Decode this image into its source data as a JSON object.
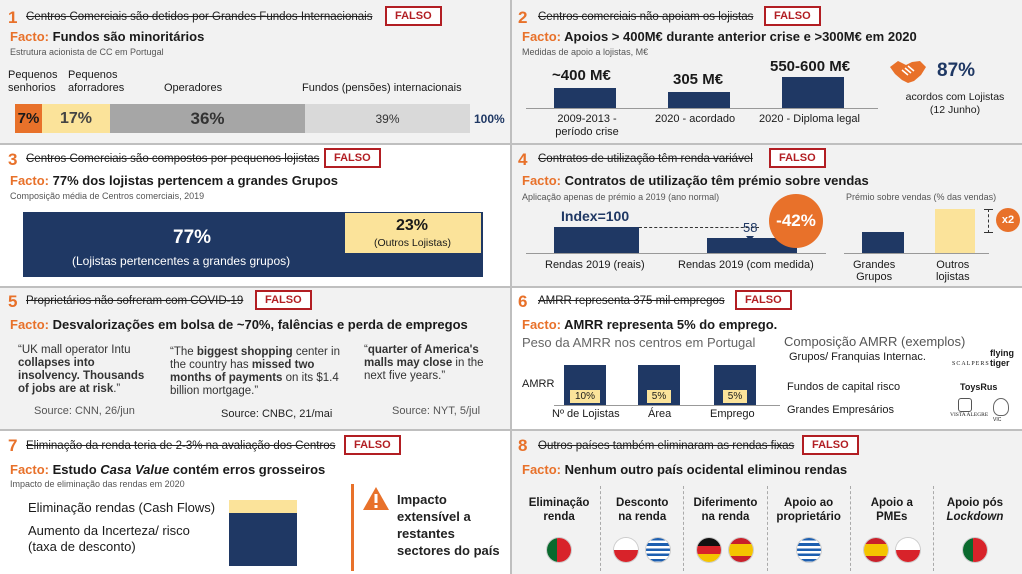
{
  "p1": {
    "num": "1",
    "myth": "Centros Comerciais são detidos por Grandes Fundos Internacionais",
    "falso": "FALSO",
    "fact_label": "Facto:",
    "fact_text": "Fundos são minoritários",
    "sub": "Estrutura acionista de CC em Portugal",
    "seg_labels": [
      "Pequenos senhorios",
      "Pequenos aforradores",
      "Operadores",
      "Fundos (pensões) internacionais"
    ],
    "seg_values": [
      "7%",
      "17%",
      "36%",
      "39%"
    ],
    "seg_colors": [
      "#e8712a",
      "#fbe39a",
      "#a6a6a6",
      "#d9d9d9"
    ],
    "total": "100%"
  },
  "p2": {
    "num": "2",
    "myth": "Centros comerciais não apoiam os lojistas",
    "falso": "FALSO",
    "fact_label": "Facto:",
    "fact_text": "Apoios > 400M€ durante anterior crise e >300M€ em 2020",
    "sub": "Medidas de apoio a lojistas, M€",
    "bars": [
      {
        "value": "~400 M€",
        "label": "2009-2013 -\nperíodo crise"
      },
      {
        "value": "305 M€",
        "label": "2020 - acordado"
      },
      {
        "value": "550-600 M€",
        "label": "2020 - Diploma legal"
      }
    ],
    "pct": "87%",
    "pct_label": "acordos com Lojistas\n(12 Junho)",
    "icon": "handshake-icon"
  },
  "p3": {
    "num": "3",
    "myth": "Centros Comerciais são compostos por pequenos lojistas",
    "falso": "FALSO",
    "fact_label": "Facto:",
    "fact_text": "77% dos lojistas pertencem a grandes Grupos",
    "sub": "Composição média de Centros comerciais, 2019",
    "big_value": "77%",
    "big_label": "(Lojistas pertencentes a grandes grupos)",
    "small_value": "23%",
    "small_label": "(Outros Lojistas)"
  },
  "p4": {
    "num": "4",
    "myth": "Contratos de utilização têm renda variável",
    "falso": "FALSO",
    "fact_label": "Facto:",
    "fact_text": "Contratos de utilização têm prémio sobre vendas",
    "sub": "Aplicação apenas de prémio a 2019 (ano normal)",
    "index_label": "Index=100",
    "index2": "58",
    "badge": "-42%",
    "bar1_label": "Rendas 2019 (reais)",
    "bar2_label": "Rendas 2019 (com medida)",
    "sub2": "Prémio sobre vendas (% das vendas)",
    "bar3_label": "Grandes\nGrupos",
    "bar4_label": "Outros\nlojistas",
    "mult": "x2"
  },
  "p5": {
    "num": "5",
    "myth": "Proprietários não sofreram com COVID-19",
    "falso": "FALSO",
    "fact_label": "Facto:",
    "fact_text": "Desvalorizações em bolsa de ~70%, falências e perda de empregos",
    "q1_a": "“UK mall operator Intu ",
    "q1_b": "collapses into insolvency. Thousands of jobs are at risk",
    "q1_c": ".”",
    "q1_src": "Source: CNN, 26/jun",
    "q2_a": "“The ",
    "q2_b": "biggest shopping",
    "q2_c": " center in the country has ",
    "q2_d": "missed two months of payments",
    "q2_e": " on its $1.4 billion mortgage.”",
    "q2_src": "Source: CNBC, 21/mai",
    "q3_a": "“",
    "q3_b": "quarter of America's malls may close",
    "q3_c": " in the next five years.”",
    "q3_src": "Source: NYT, 5/jul"
  },
  "p6": {
    "num": "6",
    "myth": "AMRR representa 375 mil empregos",
    "falso": "FALSO",
    "fact_label": "Facto:",
    "fact_text": "AMRR representa 5% do emprego.",
    "sub": "Peso da AMRR nos centros em Portugal",
    "amrr": "AMRR",
    "bars": [
      {
        "value": "10%",
        "label": "Nº de Lojistas"
      },
      {
        "value": "5%",
        "label": "Área"
      },
      {
        "value": "5%",
        "label": "Emprego"
      }
    ],
    "comp_title": "Composição AMRR (exemplos)",
    "comp_items": [
      "Grupos/ Franquias Internac.",
      "Fundos de capital risco",
      "Grandes Empresários"
    ],
    "logos": [
      "SCALPERS",
      "flying tiger",
      "ToysRus",
      "VISTA ALEGRE",
      "VIC"
    ]
  },
  "p7": {
    "num": "7",
    "myth": "Eliminação da renda teria de 2-3% na avaliação dos Centros",
    "falso": "FALSO",
    "fact_label": "Facto:",
    "fact_pre": "Estudo ",
    "fact_italic": "Casa Value",
    "fact_post": " contém erros grosseiros",
    "sub": "Impacto de eliminação das rendas em 2020",
    "row1": "Eliminação rendas (Cash Flows)",
    "row2": "Aumento da Incerteza/ risco\n(taxa de desconto)",
    "impact": "Impacto\nextensível a\nrestantes\nsectores do país"
  },
  "p8": {
    "num": "8",
    "myth": "Outros países também eliminaram as rendas fixas",
    "falso": "FALSO",
    "fact_label": "Facto:",
    "fact_text": "Nenhum outro país ocidental eliminou rendas",
    "cols": [
      {
        "label": "Eliminação\nrenda",
        "flags": [
          "pt"
        ]
      },
      {
        "label": "Desconto\nna renda",
        "flags": [
          "pl",
          "gr"
        ]
      },
      {
        "label": "Diferimento\nna renda",
        "flags": [
          "de",
          "es"
        ]
      },
      {
        "label": "Apoio ao\nproprietário",
        "flags": [
          "gr"
        ]
      },
      {
        "label": "Apoio a\nPMEs",
        "flags": [
          "es",
          "pl"
        ]
      },
      {
        "label": "Apoio pós\nLockdown",
        "flags": [
          "pt"
        ]
      }
    ]
  }
}
